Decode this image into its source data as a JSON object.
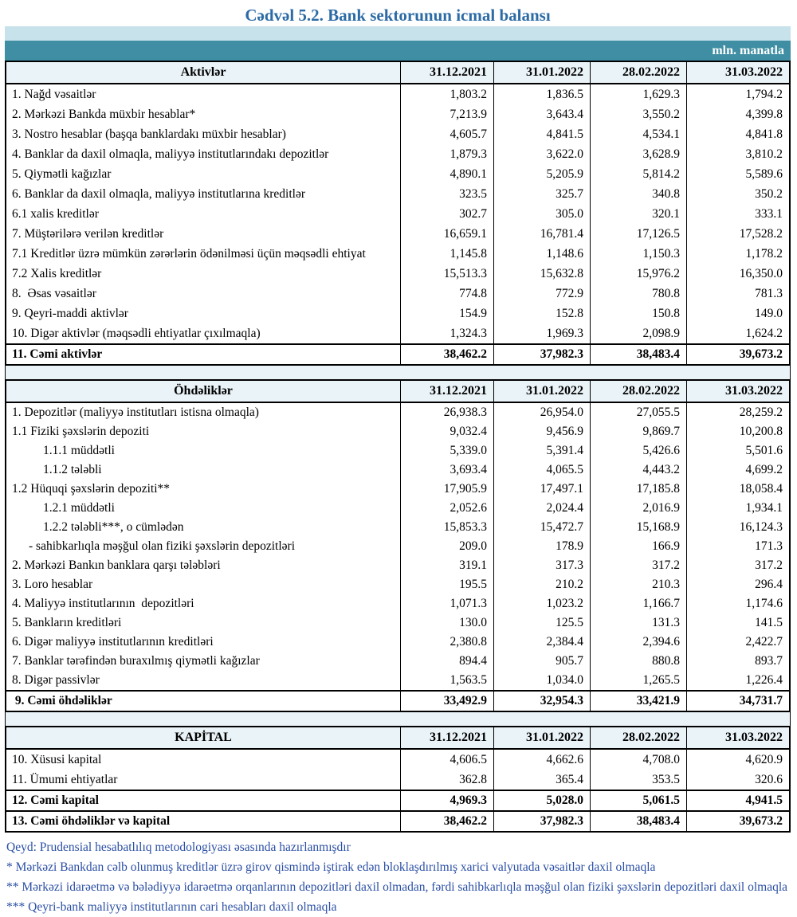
{
  "title": "Cədvəl 5.2. Bank sektorunun icmal balansı",
  "unit_label": "mln. manatla",
  "columns": [
    "31.12.2021",
    "31.01.2022",
    "28.02.2022",
    "31.03.2022"
  ],
  "colors": {
    "title": "#2C6BA5",
    "band_light": "#C7E2EA",
    "band_teal": "#3F8EA3",
    "header_bg": "#EAF3F8",
    "note_text": "#2B4FA5"
  },
  "sections": [
    {
      "header": "Aktivlər",
      "rows": [
        {
          "label": "1. Nağd vəsaitlər",
          "values": [
            "1,803.2",
            "1,836.5",
            "1,629.3",
            "1,794.2"
          ]
        },
        {
          "label": "2. Mərkəzi Bankda müxbir hesablar*",
          "values": [
            "7,213.9",
            "3,643.4",
            "3,550.2",
            "4,399.8"
          ]
        },
        {
          "label": "3. Nostro hesablar (başqa banklardakı müxbir hesablar)",
          "values": [
            "4,605.7",
            "4,841.5",
            "4,534.1",
            "4,841.8"
          ]
        },
        {
          "label": "4. Banklar da daxil olmaqla, maliyyə institutlarındakı depozitlər",
          "values": [
            "1,879.3",
            "3,622.0",
            "3,628.9",
            "3,810.2"
          ]
        },
        {
          "label": "5. Qiymətli kağızlar",
          "values": [
            "4,890.1",
            "5,205.9",
            "5,814.2",
            "5,589.6"
          ]
        },
        {
          "label": "6. Banklar da daxil olmaqla, maliyyə institutlarına kreditlər",
          "values": [
            "323.5",
            "325.7",
            "340.8",
            "350.2"
          ]
        },
        {
          "label": "6.1 xalis kreditlər",
          "values": [
            "302.7",
            "305.0",
            "320.1",
            "333.1"
          ]
        },
        {
          "label": "7. Müştərilərə verilən kreditlər",
          "values": [
            "16,659.1",
            "16,781.4",
            "17,126.5",
            "17,528.2"
          ]
        },
        {
          "label": "7.1 Kreditlər üzrə mümkün zərərlərin ödənilməsi üçün məqsədli ehtiyat",
          "values": [
            "1,145.8",
            "1,148.6",
            "1,150.3",
            "1,178.2"
          ]
        },
        {
          "label": "7.2 Xalis kreditlər",
          "values": [
            "15,513.3",
            "15,632.8",
            "15,976.2",
            "16,350.0"
          ]
        },
        {
          "label": "8.  Əsas vəsaitlər",
          "values": [
            "774.8",
            "772.9",
            "780.8",
            "781.3"
          ]
        },
        {
          "label": "9. Qeyri-maddi aktivlər",
          "values": [
            "154.9",
            "152.8",
            "150.8",
            "149.0"
          ]
        },
        {
          "label": "10. Digər aktivlər (məqsədli ehtiyatlar çıxılmaqla)",
          "values": [
            "1,324.3",
            "1,969.3",
            "2,098.9",
            "1,624.2"
          ]
        }
      ],
      "totals": [
        {
          "label": "11. Cəmi aktivlər",
          "values": [
            "38,462.2",
            "37,982.3",
            "38,483.4",
            "39,673.2"
          ]
        }
      ]
    },
    {
      "header": "Öhdəliklər",
      "rows": [
        {
          "label": "1. Depozitlər (maliyyə institutları istisna olmaqla)",
          "values": [
            "26,938.3",
            "26,954.0",
            "27,055.5",
            "28,259.2"
          ]
        },
        {
          "label": "1.1 Fiziki şəxslərin depoziti",
          "values": [
            "9,032.4",
            "9,456.9",
            "9,869.7",
            "10,200.8"
          ]
        },
        {
          "label": "1.1.1 müddətli",
          "indent": 2,
          "values": [
            "5,339.0",
            "5,391.4",
            "5,426.6",
            "5,501.6"
          ]
        },
        {
          "label": "1.1.2 tələbli",
          "indent": 2,
          "values": [
            "3,693.4",
            "4,065.5",
            "4,443.2",
            "4,699.2"
          ]
        },
        {
          "label": "1.2 Hüquqi şəxslərin depoziti**",
          "values": [
            "17,905.9",
            "17,497.1",
            "17,185.8",
            "18,058.4"
          ]
        },
        {
          "label": "1.2.1 müddətli",
          "indent": 2,
          "values": [
            "2,052.6",
            "2,024.4",
            "2,016.9",
            "1,934.1"
          ]
        },
        {
          "label": "1.2.2 tələbli***, o cümlədən",
          "indent": 2,
          "values": [
            "15,853.3",
            "15,472.7",
            "15,168.9",
            "16,124.3"
          ]
        },
        {
          "label": "- sahibkarlıqla məşğul olan fiziki şəxslərin depozitləri",
          "indent": 1,
          "values": [
            "209.0",
            "178.9",
            "166.9",
            "171.3"
          ]
        },
        {
          "label": "2. Mərkəzi Bankın banklara qarşı tələbləri",
          "values": [
            "319.1",
            "317.3",
            "317.2",
            "317.2"
          ]
        },
        {
          "label": "3. Loro hesablar",
          "values": [
            "195.5",
            "210.2",
            "210.3",
            "296.4"
          ]
        },
        {
          "label": "4. Maliyyə institutlarının  depozitləri",
          "values": [
            "1,071.3",
            "1,023.2",
            "1,166.7",
            "1,174.6"
          ]
        },
        {
          "label": "5. Bankların kreditləri",
          "values": [
            "130.0",
            "125.5",
            "131.3",
            "141.5"
          ]
        },
        {
          "label": "6. Digər maliyyə institutlarının kreditləri",
          "values": [
            "2,380.8",
            "2,384.4",
            "2,394.6",
            "2,422.7"
          ]
        },
        {
          "label": "7. Banklar tərəfindən buraxılmış qiymətli kağızlar",
          "values": [
            "894.4",
            "905.7",
            "880.8",
            "893.7"
          ]
        },
        {
          "label": "8. Digər passivlər",
          "values": [
            "1,563.5",
            "1,034.0",
            "1,265.5",
            "1,226.4"
          ]
        }
      ],
      "totals": [
        {
          "label": " 9. Cəmi öhdəliklər",
          "values": [
            "33,492.9",
            "32,954.3",
            "33,421.9",
            "34,731.7"
          ]
        }
      ]
    },
    {
      "header": "KAPİTAL",
      "rows": [
        {
          "label": "10. Xüsusi kapital",
          "values": [
            "4,606.5",
            "4,662.6",
            "4,708.0",
            "4,620.9"
          ]
        },
        {
          "label": "11. Ümumi ehtiyatlar",
          "values": [
            "362.8",
            "365.4",
            "353.5",
            "320.6"
          ]
        }
      ],
      "totals": [
        {
          "label": "12. Cəmi kapital",
          "values": [
            "4,969.3",
            "5,028.0",
            "5,061.5",
            "4,941.5"
          ]
        },
        {
          "label": "13. Cəmi öhdəliklər və kapital",
          "values": [
            "38,462.2",
            "37,982.3",
            "38,483.4",
            "39,673.2"
          ]
        }
      ]
    }
  ],
  "notes": [
    "Qeyd: Prudensial hesabatlılıq metodologiyası əsasında hazırlanmışdır",
    "* Mərkəzi Bankdan cəlb olunmuş kreditlər üzrə girov qismində iştirak edən bloklaşdırılmış xarici valyutada vəsaitlər daxil olmaqla",
    "** Mərkəzi idarəetmə və bələdiyyə idarəetmə orqanlarının depozitləri daxil olmadan, fərdi sahibkarlıqla məşğul olan fiziki şəxslərin depozitləri daxil olmaqla",
    "*** Qeyri-bank maliyyə institutlarının cari hesabları daxil olmaqla"
  ]
}
